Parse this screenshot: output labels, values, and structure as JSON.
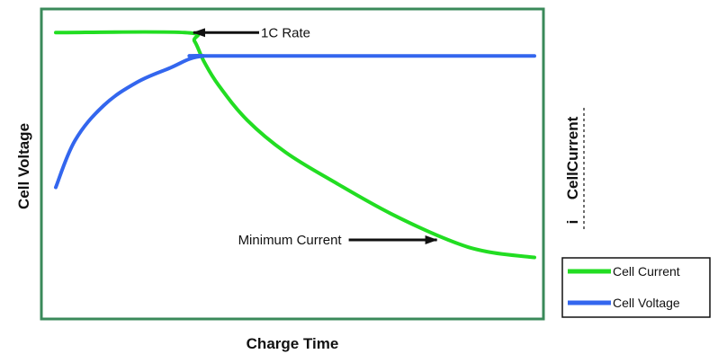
{
  "chart_data": {
    "type": "line",
    "xlabel": "Charge Time",
    "ylabel": "Cell Voltage",
    "y2label": "CellCurrent",
    "y2_prefix": "i",
    "xlim": [
      0,
      100
    ],
    "ylim": [
      0,
      100
    ],
    "grid": false,
    "ticks_shown": false,
    "legend_position": "bottom-right",
    "frame_color": "#3a8a5a",
    "series": [
      {
        "name": "Cell Current",
        "color": "#22dd22",
        "x": [
          0,
          27,
          29,
          31,
          34,
          40,
          48,
          58,
          70,
          82,
          90,
          100
        ],
        "y": [
          95,
          95,
          92,
          85,
          77,
          65,
          54,
          44,
          33,
          24,
          20,
          18
        ]
      },
      {
        "name": "Cell Voltage",
        "color": "#3366ee",
        "x": [
          0,
          4,
          10,
          17,
          24,
          28,
          31,
          34,
          100
        ],
        "y": [
          42,
          58,
          70,
          78,
          83,
          86,
          87,
          87,
          87
        ]
      }
    ],
    "annotations": [
      {
        "text": "1C Rate",
        "target_x": 28,
        "target_y": 95,
        "arrow_direction": "left"
      },
      {
        "text": "Minimum Current",
        "target_x": 80,
        "target_y": 24,
        "arrow_direction": "right"
      }
    ]
  }
}
